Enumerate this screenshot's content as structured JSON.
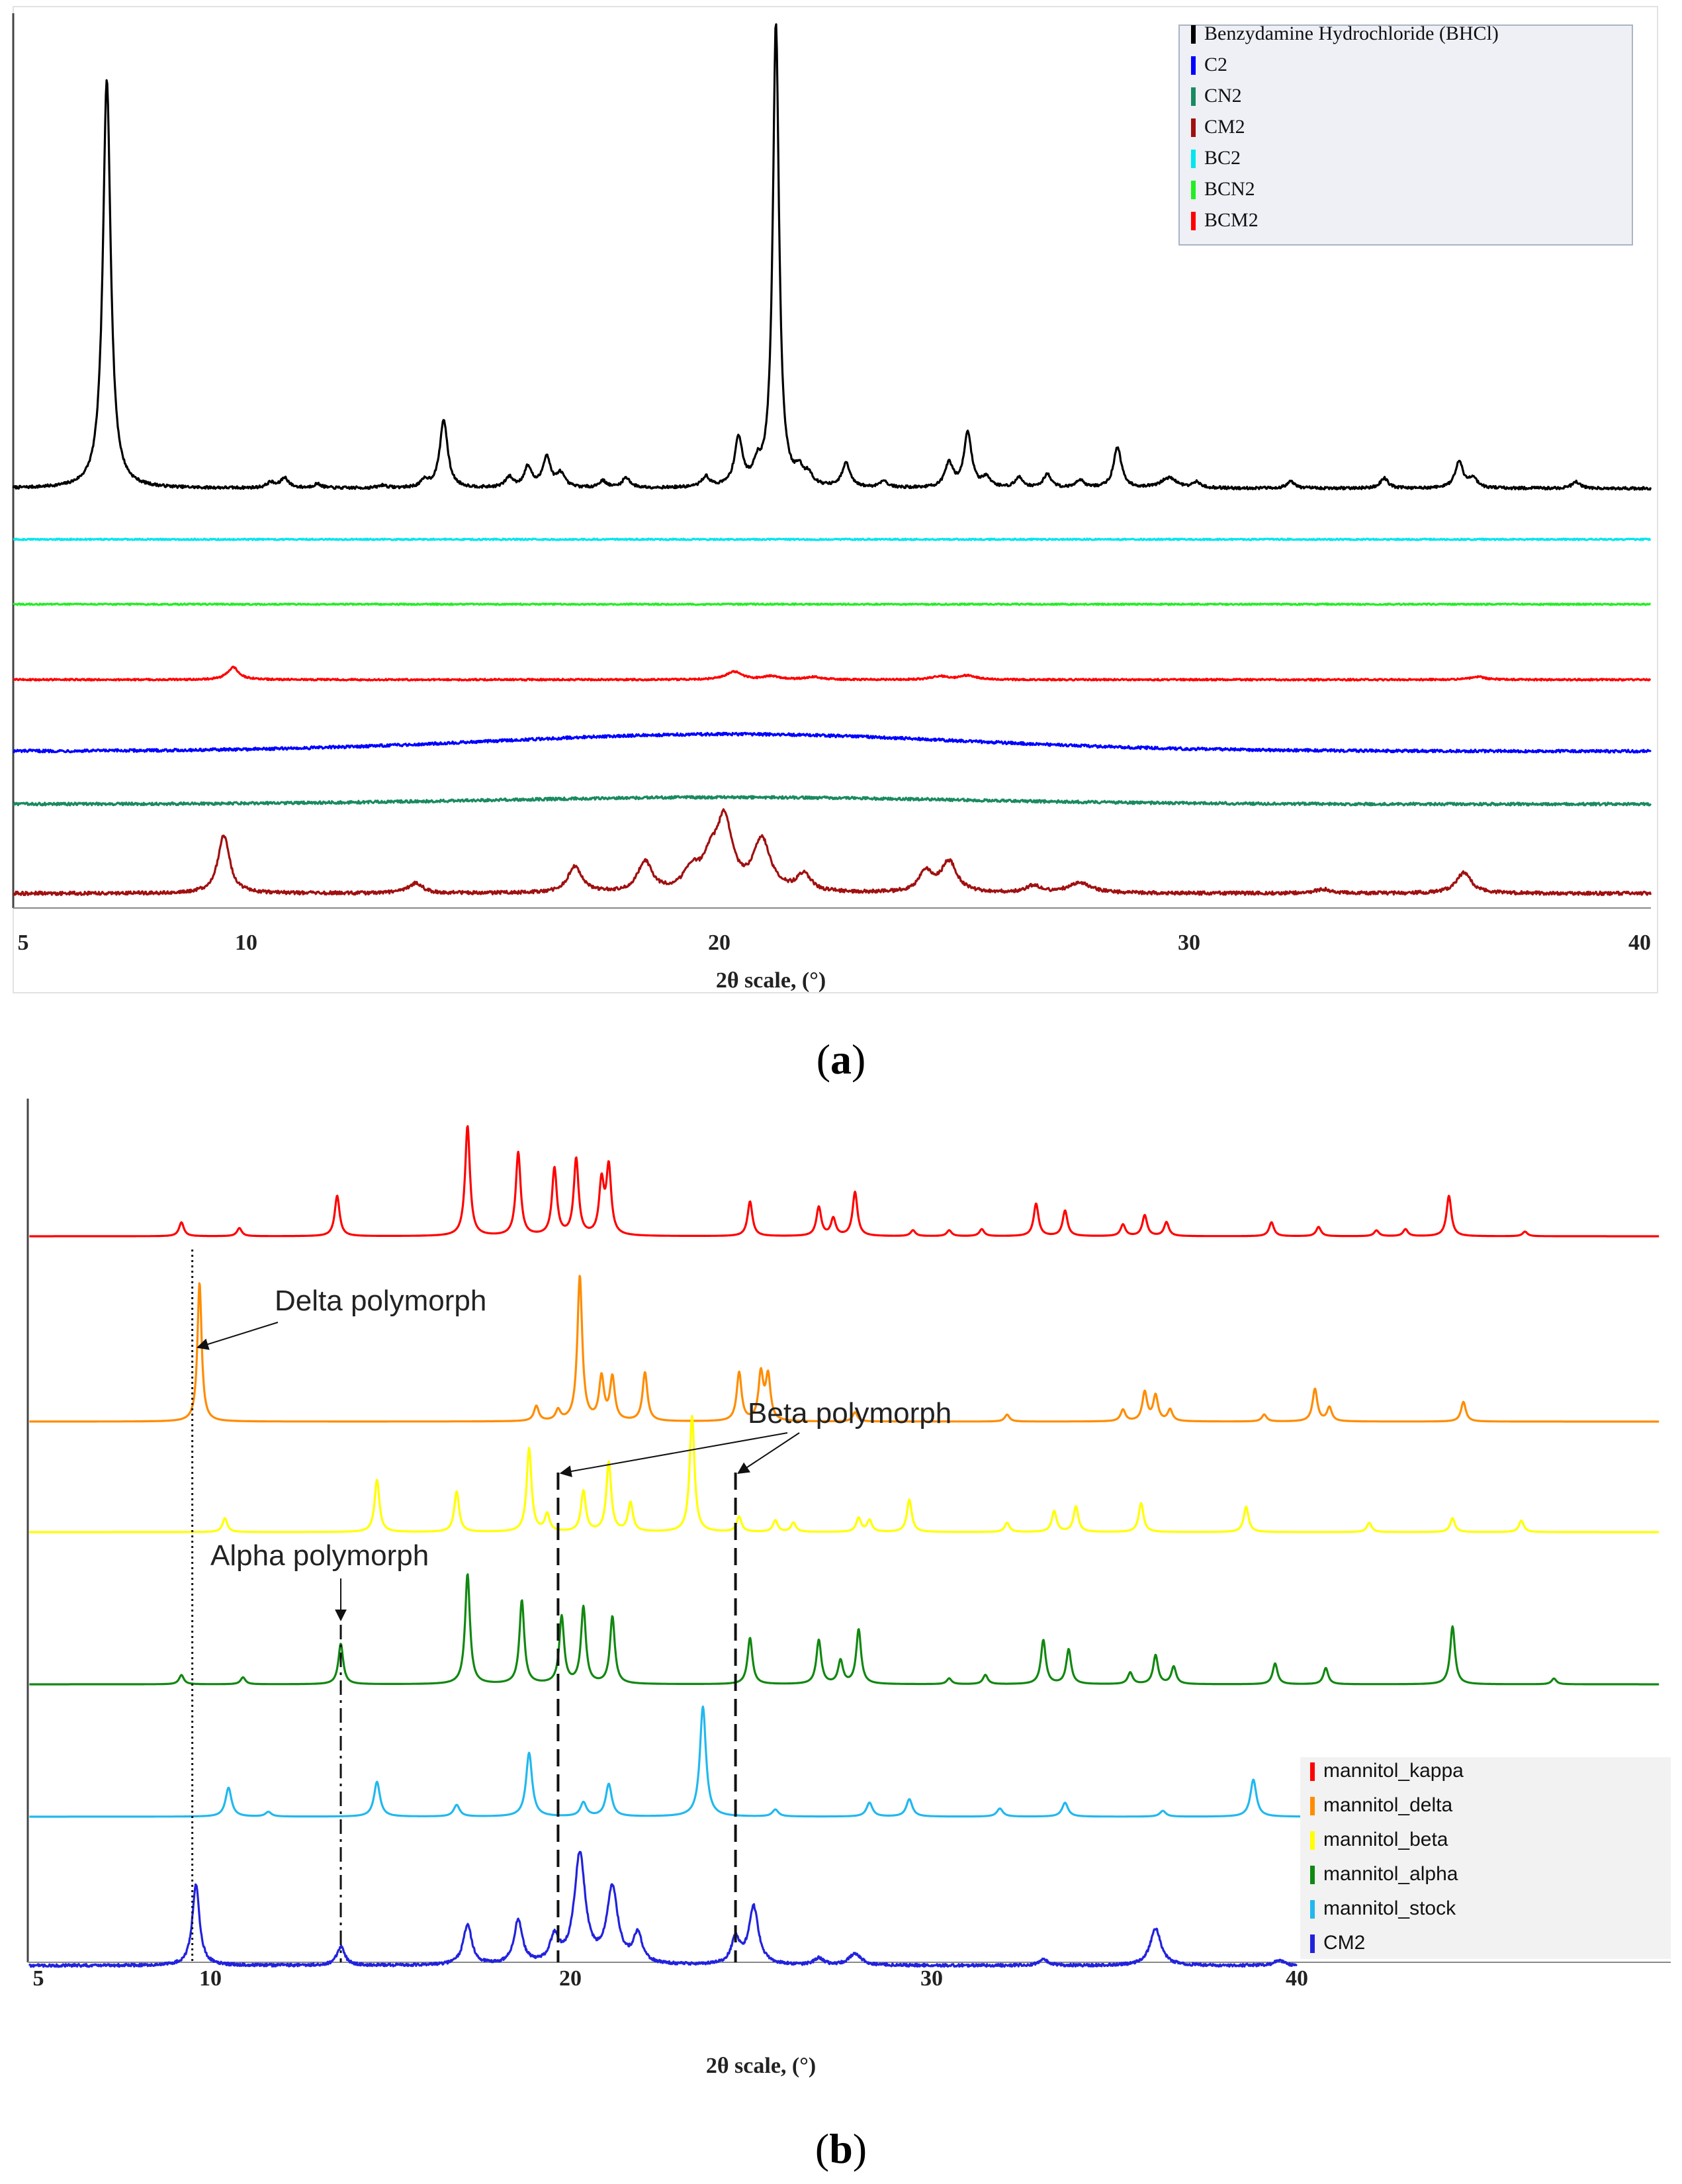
{
  "chart_data": [
    {
      "panel_label": "a",
      "type": "line",
      "title": "",
      "xlabel": "2θ scale, (°)",
      "ylabel": "",
      "xlim": [
        5,
        40
      ],
      "xticks": [
        "5",
        "10",
        "20",
        "30",
        "40"
      ],
      "grid": false,
      "legend_position": "top-right",
      "series": [
        {
          "name": "Benzydamine Hydrochloride (BHCl)",
          "color": "#000000",
          "baseline": 1.0,
          "noise": 0.02,
          "peaks": [
            [
              7.0,
              6.0,
              0.1
            ],
            [
              10.5,
              0.08,
              0.1
            ],
            [
              10.8,
              0.15,
              0.1
            ],
            [
              11.5,
              0.06,
              0.1
            ],
            [
              12.9,
              0.04,
              0.1
            ],
            [
              13.8,
              0.1,
              0.1
            ],
            [
              14.2,
              1.0,
              0.1
            ],
            [
              15.6,
              0.15,
              0.1
            ],
            [
              16.0,
              0.3,
              0.1
            ],
            [
              16.4,
              0.45,
              0.1
            ],
            [
              16.7,
              0.2,
              0.1
            ],
            [
              17.6,
              0.1,
              0.1
            ],
            [
              18.1,
              0.15,
              0.1
            ],
            [
              19.8,
              0.15,
              0.1
            ],
            [
              20.5,
              0.7,
              0.1
            ],
            [
              20.9,
              0.25,
              0.1
            ],
            [
              21.3,
              6.8,
              0.08
            ],
            [
              21.8,
              0.2,
              0.1
            ],
            [
              22.0,
              0.15,
              0.1
            ],
            [
              22.8,
              0.35,
              0.1
            ],
            [
              23.6,
              0.1,
              0.1
            ],
            [
              25.0,
              0.35,
              0.1
            ],
            [
              25.4,
              0.8,
              0.1
            ],
            [
              25.8,
              0.15,
              0.1
            ],
            [
              26.5,
              0.15,
              0.1
            ],
            [
              27.1,
              0.2,
              0.1
            ],
            [
              27.8,
              0.12,
              0.1
            ],
            [
              28.6,
              0.6,
              0.1
            ],
            [
              29.7,
              0.15,
              0.2
            ],
            [
              30.3,
              0.08,
              0.1
            ],
            [
              32.3,
              0.1,
              0.1
            ],
            [
              34.3,
              0.15,
              0.1
            ],
            [
              35.9,
              0.4,
              0.1
            ],
            [
              36.2,
              0.15,
              0.1
            ],
            [
              38.4,
              0.1,
              0.1
            ]
          ]
        },
        {
          "name": "C2",
          "color": "#0000ff",
          "baseline": 4.75,
          "noise": 0.02,
          "broad": [
            [
              20.3,
              0.25,
              7.0
            ]
          ],
          "peaks": []
        },
        {
          "name": "CN2",
          "color": "#1a8a60",
          "baseline": 5.5,
          "noise": 0.02,
          "broad": [
            [
              20.3,
              0.1,
              7.0
            ]
          ],
          "peaks": []
        },
        {
          "name": "CM2",
          "color": "#a01010",
          "baseline": 6.85,
          "noise": 0.025,
          "peaks": [
            [
              9.5,
              0.85,
              0.15
            ],
            [
              13.6,
              0.15,
              0.18
            ],
            [
              17.0,
              0.38,
              0.18
            ],
            [
              18.5,
              0.45,
              0.18
            ],
            [
              19.5,
              0.3,
              0.2
            ],
            [
              19.9,
              0.4,
              0.2
            ],
            [
              20.2,
              1.0,
              0.2
            ],
            [
              21.0,
              0.75,
              0.22
            ],
            [
              21.9,
              0.25,
              0.18
            ],
            [
              24.5,
              0.3,
              0.18
            ],
            [
              25.0,
              0.45,
              0.2
            ],
            [
              26.8,
              0.1,
              0.2
            ],
            [
              27.8,
              0.15,
              0.3
            ],
            [
              33.0,
              0.06,
              0.2
            ],
            [
              36.0,
              0.3,
              0.2
            ]
          ]
        },
        {
          "name": "BC2",
          "color": "#00e5ee",
          "baseline": 1.7,
          "noise": 0.01,
          "peaks": []
        },
        {
          "name": "BCN2",
          "color": "#22ee22",
          "baseline": 2.6,
          "noise": 0.01,
          "peaks": []
        },
        {
          "name": "BCM2",
          "color": "#ff0000",
          "baseline": 3.7,
          "noise": 0.012,
          "peaks": [
            [
              9.7,
              0.18,
              0.15
            ],
            [
              20.4,
              0.12,
              0.2
            ],
            [
              21.2,
              0.05,
              0.2
            ],
            [
              22.1,
              0.04,
              0.2
            ],
            [
              24.8,
              0.05,
              0.2
            ],
            [
              25.4,
              0.06,
              0.2
            ],
            [
              36.3,
              0.04,
              0.2
            ]
          ]
        }
      ]
    },
    {
      "panel_label": "b",
      "type": "line",
      "title": "",
      "xlabel": "2θ scale, (°)",
      "ylabel": "",
      "xlim": [
        5,
        50
      ],
      "xticks": [
        "5",
        "10",
        "20",
        "30",
        "40"
      ],
      "grid": false,
      "legend_position": "bottom-right",
      "annotations": [
        "Delta polymorph",
        "Beta polymorph",
        "Alpha polymorph"
      ],
      "series": [
        {
          "name": "mannitol_kappa",
          "color": "#ff0000",
          "baseline": 1.0,
          "noise": 0.0,
          "peaks": [
            [
              9.2,
              0.12,
              0.08
            ],
            [
              10.8,
              0.07,
              0.08
            ],
            [
              13.5,
              0.35,
              0.08
            ],
            [
              17.1,
              0.95,
              0.08
            ],
            [
              18.5,
              0.72,
              0.08
            ],
            [
              19.5,
              0.58,
              0.08
            ],
            [
              20.1,
              0.66,
              0.08
            ],
            [
              20.8,
              0.45,
              0.08
            ],
            [
              21.0,
              0.58,
              0.08
            ],
            [
              24.9,
              0.3,
              0.08
            ],
            [
              26.8,
              0.25,
              0.08
            ],
            [
              27.2,
              0.15,
              0.08
            ],
            [
              27.8,
              0.38,
              0.08
            ],
            [
              29.4,
              0.05,
              0.08
            ],
            [
              30.4,
              0.05,
              0.08
            ],
            [
              31.3,
              0.06,
              0.08
            ],
            [
              32.8,
              0.28,
              0.08
            ],
            [
              33.6,
              0.22,
              0.08
            ],
            [
              35.2,
              0.1,
              0.08
            ],
            [
              35.8,
              0.18,
              0.08
            ],
            [
              36.4,
              0.12,
              0.08
            ],
            [
              39.3,
              0.12,
              0.08
            ],
            [
              40.6,
              0.08,
              0.08
            ],
            [
              42.2,
              0.05,
              0.08
            ],
            [
              43.0,
              0.06,
              0.08
            ],
            [
              44.2,
              0.35,
              0.08
            ],
            [
              46.3,
              0.04,
              0.08
            ]
          ]
        },
        {
          "name": "mannitol_delta",
          "color": "#ff8c00",
          "baseline": 2.3,
          "noise": 0.0,
          "peaks": [
            [
              9.7,
              1.2,
              0.07
            ],
            [
              19.0,
              0.13,
              0.08
            ],
            [
              19.6,
              0.09,
              0.08
            ],
            [
              20.2,
              1.25,
              0.08
            ],
            [
              20.8,
              0.37,
              0.08
            ],
            [
              21.1,
              0.37,
              0.08
            ],
            [
              22.0,
              0.42,
              0.08
            ],
            [
              24.6,
              0.42,
              0.08
            ],
            [
              25.2,
              0.4,
              0.08
            ],
            [
              25.4,
              0.38,
              0.08
            ],
            [
              27.8,
              0.08,
              0.08
            ],
            [
              32.0,
              0.06,
              0.08
            ],
            [
              35.2,
              0.1,
              0.08
            ],
            [
              35.8,
              0.25,
              0.08
            ],
            [
              36.1,
              0.22,
              0.08
            ],
            [
              36.5,
              0.1,
              0.08
            ],
            [
              39.1,
              0.06,
              0.08
            ],
            [
              40.5,
              0.28,
              0.08
            ],
            [
              40.9,
              0.12,
              0.08
            ],
            [
              44.6,
              0.17,
              0.08
            ]
          ]
        },
        {
          "name": "mannitol_beta",
          "color": "#ffff00",
          "baseline": 3.6,
          "noise": 0.0,
          "peaks": [
            [
              10.4,
              0.12,
              0.08
            ],
            [
              14.6,
              0.45,
              0.08
            ],
            [
              16.8,
              0.35,
              0.08
            ],
            [
              18.8,
              0.72,
              0.08
            ],
            [
              19.3,
              0.15,
              0.08
            ],
            [
              20.3,
              0.35,
              0.08
            ],
            [
              21.0,
              0.6,
              0.08
            ],
            [
              21.6,
              0.25,
              0.08
            ],
            [
              23.3,
              1.0,
              0.08
            ],
            [
              24.6,
              0.13,
              0.08
            ],
            [
              25.6,
              0.1,
              0.08
            ],
            [
              26.1,
              0.08,
              0.08
            ],
            [
              27.9,
              0.12,
              0.08
            ],
            [
              28.2,
              0.1,
              0.08
            ],
            [
              29.3,
              0.28,
              0.08
            ],
            [
              32.0,
              0.08,
              0.08
            ],
            [
              33.3,
              0.18,
              0.08
            ],
            [
              33.9,
              0.22,
              0.08
            ],
            [
              35.7,
              0.25,
              0.08
            ],
            [
              38.6,
              0.22,
              0.08
            ],
            [
              42.0,
              0.08,
              0.08
            ],
            [
              44.3,
              0.12,
              0.08
            ],
            [
              46.2,
              0.1,
              0.08
            ]
          ]
        },
        {
          "name": "mannitol_alpha",
          "color": "#118811",
          "baseline": 4.75,
          "noise": 0.0,
          "peaks": [
            [
              9.2,
              0.08,
              0.08
            ],
            [
              10.9,
              0.06,
              0.08
            ],
            [
              13.6,
              0.35,
              0.08
            ],
            [
              17.1,
              0.95,
              0.08
            ],
            [
              18.6,
              0.72,
              0.08
            ],
            [
              19.7,
              0.58,
              0.08
            ],
            [
              20.3,
              0.66,
              0.08
            ],
            [
              21.1,
              0.58,
              0.08
            ],
            [
              24.9,
              0.4,
              0.08
            ],
            [
              26.8,
              0.38,
              0.08
            ],
            [
              27.4,
              0.2,
              0.08
            ],
            [
              27.9,
              0.47,
              0.08
            ],
            [
              30.4,
              0.05,
              0.08
            ],
            [
              31.4,
              0.08,
              0.08
            ],
            [
              33.0,
              0.38,
              0.08
            ],
            [
              33.7,
              0.3,
              0.08
            ],
            [
              35.4,
              0.1,
              0.08
            ],
            [
              36.1,
              0.25,
              0.08
            ],
            [
              36.6,
              0.15,
              0.08
            ],
            [
              39.4,
              0.18,
              0.08
            ],
            [
              40.8,
              0.14,
              0.08
            ],
            [
              44.3,
              0.5,
              0.08
            ],
            [
              47.1,
              0.05,
              0.08
            ]
          ]
        },
        {
          "name": "mannitol_stock",
          "color": "#22b8ee",
          "baseline": 5.9,
          "noise": 0.0,
          "peaks": [
            [
              10.5,
              0.25,
              0.1
            ],
            [
              11.6,
              0.04,
              0.1
            ],
            [
              14.6,
              0.3,
              0.1
            ],
            [
              16.8,
              0.1,
              0.1
            ],
            [
              18.8,
              0.55,
              0.1
            ],
            [
              20.3,
              0.12,
              0.1
            ],
            [
              21.0,
              0.28,
              0.1
            ],
            [
              23.6,
              0.95,
              0.1
            ],
            [
              25.6,
              0.06,
              0.1
            ],
            [
              28.2,
              0.12,
              0.1
            ],
            [
              29.3,
              0.15,
              0.1
            ],
            [
              31.8,
              0.07,
              0.1
            ],
            [
              33.6,
              0.12,
              0.1
            ],
            [
              36.3,
              0.05,
              0.1
            ],
            [
              38.8,
              0.32,
              0.1
            ]
          ]
        },
        {
          "name": "CM2",
          "color": "#2222dd",
          "baseline": 7.0,
          "noise": 0.012,
          "xend": 40,
          "peaks": [
            [
              9.6,
              0.7,
              0.12
            ],
            [
              13.6,
              0.16,
              0.13
            ],
            [
              17.1,
              0.35,
              0.14
            ],
            [
              18.5,
              0.38,
              0.14
            ],
            [
              19.5,
              0.22,
              0.15
            ],
            [
              20.2,
              0.95,
              0.18
            ],
            [
              21.1,
              0.65,
              0.18
            ],
            [
              21.8,
              0.25,
              0.15
            ],
            [
              24.5,
              0.22,
              0.14
            ],
            [
              25.0,
              0.5,
              0.16
            ],
            [
              26.8,
              0.06,
              0.15
            ],
            [
              27.8,
              0.1,
              0.2
            ],
            [
              33.0,
              0.05,
              0.15
            ],
            [
              36.1,
              0.32,
              0.18
            ],
            [
              39.5,
              0.05,
              0.15
            ]
          ]
        }
      ]
    }
  ]
}
